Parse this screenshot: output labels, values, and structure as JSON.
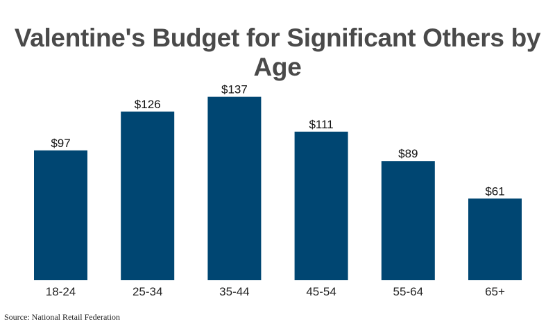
{
  "title": "Valentine's Budget for Significant Others by Age",
  "source": "Source: National Retail Federation",
  "colors": {
    "bar": "#004672",
    "title": "#4a4a4a",
    "background": "#ffffff"
  },
  "chart_data": {
    "type": "bar",
    "title": "Valentine's Budget for Significant Others by Age",
    "categories": [
      "18-24",
      "25-34",
      "35-44",
      "45-54",
      "55-64",
      "65+"
    ],
    "values": [
      97,
      126,
      137,
      111,
      89,
      61
    ],
    "value_labels": [
      "$97",
      "$126",
      "$137",
      "$111",
      "$89",
      "$61"
    ],
    "xlabel": "",
    "ylabel": "",
    "ylim": [
      0,
      150
    ],
    "grid": false,
    "legend": "none"
  }
}
